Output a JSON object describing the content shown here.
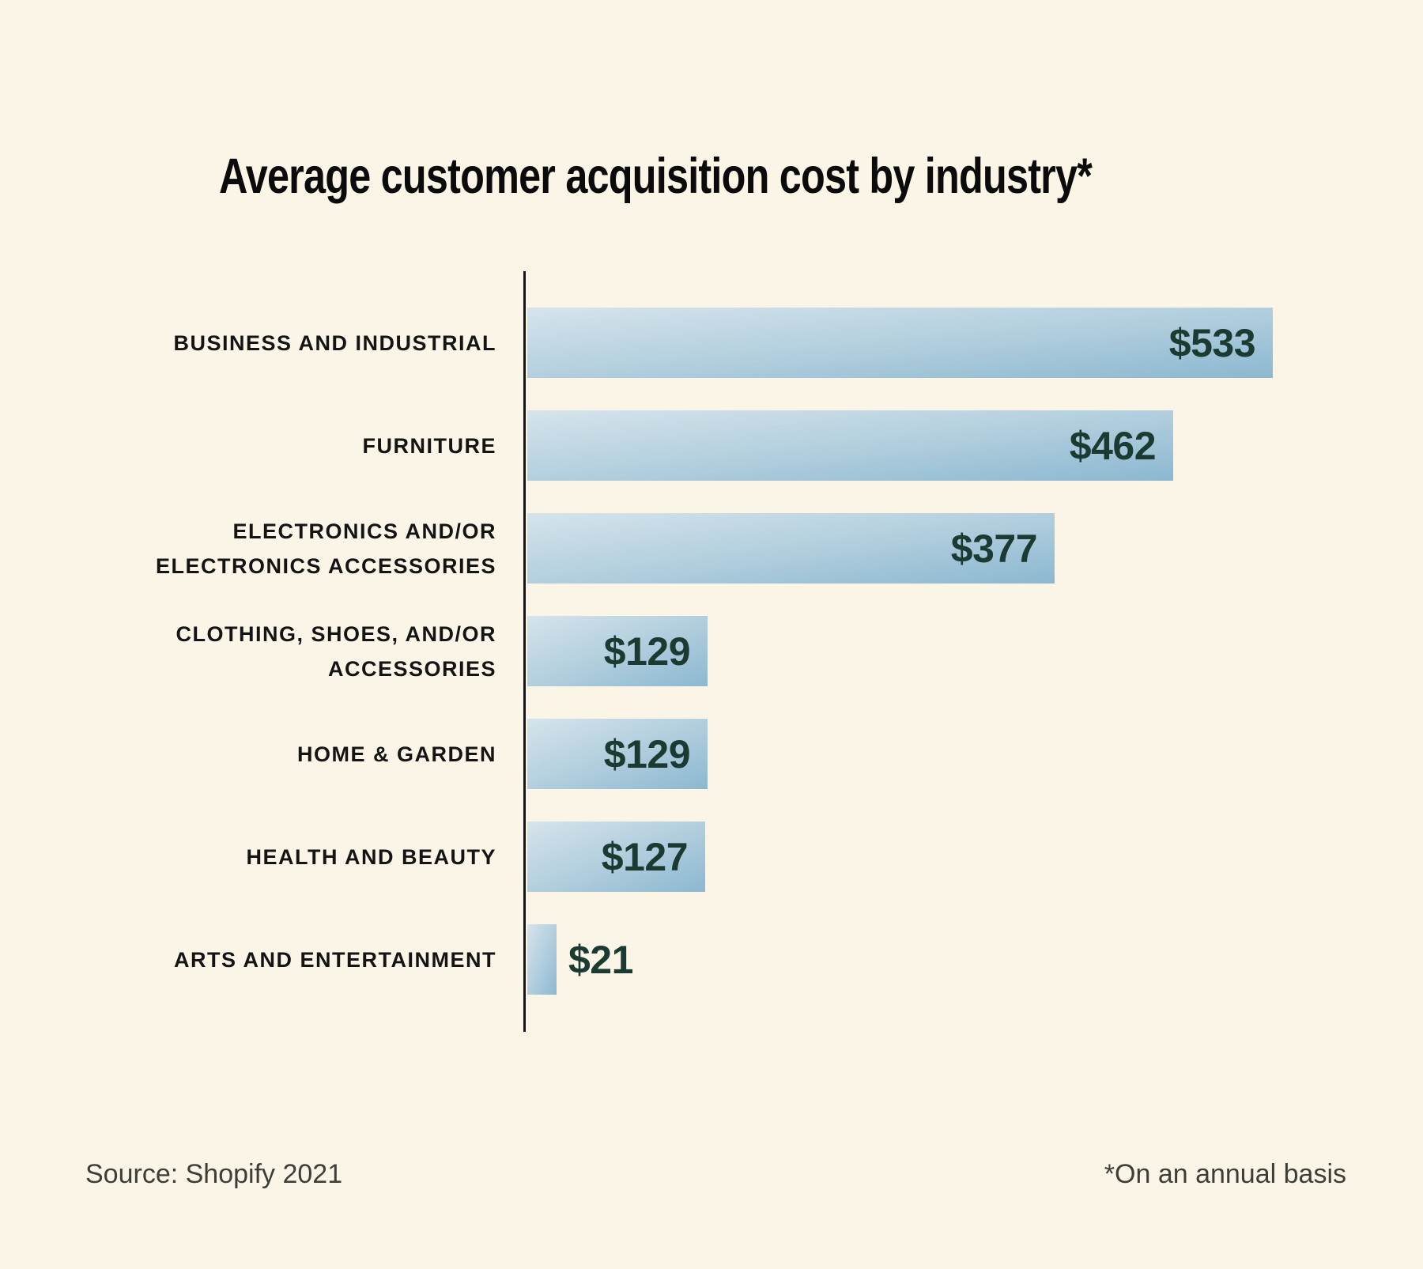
{
  "title": "Average customer acquisition cost by industry*",
  "source": "Source: Shopify 2021",
  "footnote": "*On an annual basis",
  "colors": {
    "background": "#faf5e7",
    "bar_gradient_start": "#d6e4ec",
    "bar_gradient_mid": "#b3cfde",
    "bar_gradient_end": "#8cb8d0",
    "axis_line": "#161616",
    "title_text": "#0b0b0b",
    "category_label_text": "#141414",
    "value_label_text": "#1a3a32",
    "footer_text": "#3e3e39"
  },
  "chart_data": {
    "type": "bar",
    "orientation": "horizontal",
    "title": "Average customer acquisition cost by industry*",
    "unit": "USD per customer",
    "categories": [
      "BUSINESS AND INDUSTRIAL",
      "FURNITURE",
      "ELECTRONICS AND/OR ELECTRONICS ACCESSORIES",
      "CLOTHING, SHOES, AND/OR ACCESSORIES",
      "HOME & GARDEN",
      "HEALTH AND BEAUTY",
      "ARTS AND ENTERTAINMENT"
    ],
    "label_lines": [
      [
        "BUSINESS AND INDUSTRIAL"
      ],
      [
        "FURNITURE"
      ],
      [
        "ELECTRONICS AND/OR",
        "ELECTRONICS ACCESSORIES"
      ],
      [
        "CLOTHING, SHOES, AND/OR",
        "ACCESSORIES"
      ],
      [
        "HOME & GARDEN"
      ],
      [
        "HEALTH AND BEAUTY"
      ],
      [
        "ARTS AND ENTERTAINMENT"
      ]
    ],
    "values": [
      533,
      462,
      377,
      129,
      129,
      127,
      21
    ],
    "value_labels": [
      "$533",
      "$462",
      "$377",
      "$129",
      "$129",
      "$127",
      "$21"
    ],
    "value_label_position": [
      "inside-right",
      "inside-right",
      "inside-right",
      "inside-right",
      "inside-right",
      "inside-right",
      "outside-right"
    ],
    "xlim": [
      0,
      533
    ],
    "grid": false,
    "legend": false,
    "source": "Source: Shopify 2021",
    "footnote": "*On an annual basis"
  }
}
